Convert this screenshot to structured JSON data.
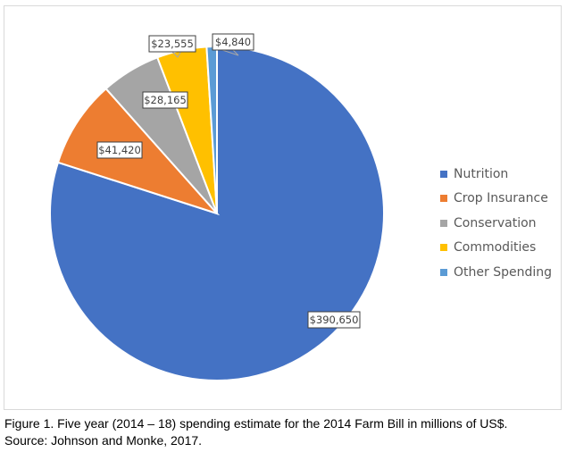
{
  "chart_data": {
    "type": "pie",
    "title": "",
    "categories": [
      "Nutrition",
      "Crop Insurance",
      "Conservation",
      "Commodities",
      "Other Spending"
    ],
    "values": [
      390650,
      41420,
      28165,
      23555,
      4840
    ],
    "data_labels": [
      "$390,650",
      "$41,420",
      "$28,165",
      "$23,555",
      "$4,840"
    ],
    "colors": [
      "#4472c4",
      "#ed7d31",
      "#a5a5a5",
      "#ffc000",
      "#5b9bd5"
    ],
    "legend_position": "right",
    "start_angle_deg": 0,
    "direction": "clockwise"
  },
  "caption": {
    "line1": "Figure 1. Five year (2014 – 18) spending estimate for the 2014 Farm Bill in millions of US$.",
    "line2": "Source: Johnson and Monke, 2017."
  }
}
